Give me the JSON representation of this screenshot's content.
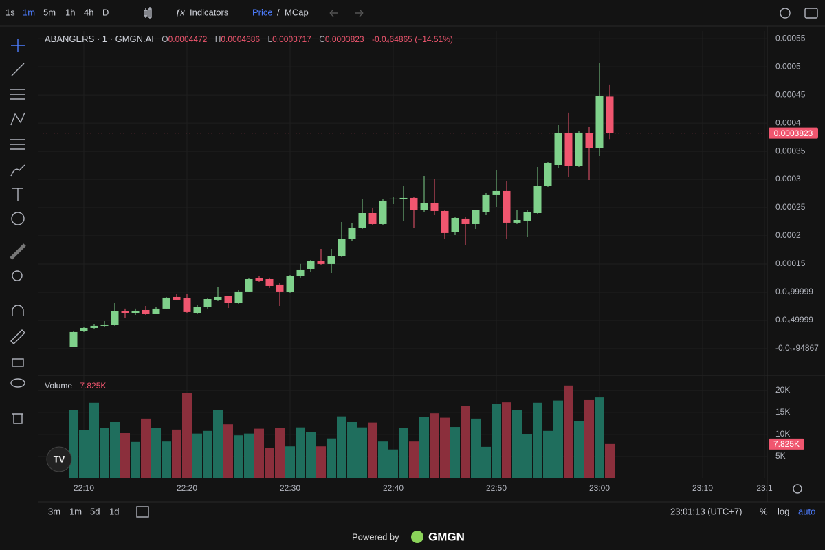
{
  "toolbar": {
    "intervals": [
      "1s",
      "1m",
      "5m",
      "1h",
      "4h",
      "D"
    ],
    "indicators": "Indicators",
    "price": "Price",
    "separator": "/",
    "mcap": "MCap"
  },
  "bottom": {
    "ranges": [
      "3m",
      "1m",
      "5d",
      "1d"
    ],
    "clock": "23:01:13 (UTC+7)",
    "options": [
      "%",
      "log",
      "auto"
    ]
  },
  "footer": {
    "powered": "Powered by",
    "brand": "GMGN"
  },
  "chart_data": {
    "type": "candlestick",
    "title": "ABANGERS · 1 · GMGN.AI",
    "ohlc_labels": [
      "O",
      "H",
      "L",
      "C"
    ],
    "change": "-0.0₄64865 (−14.51%)",
    "up_color": "#7fd18b",
    "down_color": "#f0566f",
    "grid": true,
    "categories": [
      null,
      "22:10",
      null,
      null,
      null,
      null,
      null,
      null,
      null,
      null,
      null,
      "22:20",
      null,
      null,
      null,
      null,
      null,
      null,
      null,
      null,
      null,
      "22:30",
      null,
      null,
      null,
      null,
      null,
      null,
      null,
      null,
      null,
      "22:40",
      null,
      null,
      null,
      null,
      null,
      null,
      null,
      null,
      null,
      "22:50",
      null,
      null,
      null,
      null,
      null,
      null,
      null,
      null,
      null,
      "23:00",
      null,
      null,
      null,
      null,
      null,
      null,
      null,
      null,
      null,
      "23:10",
      null,
      null,
      null,
      null,
      null,
      "23:1"
    ],
    "open": [
      2.4e-06,
      3.05e-05,
      3.66e-05,
      4.03e-05,
      4.15e-05,
      6.59e-05,
      6.34e-05,
      6.83e-05,
      6.22e-05,
      7.08e-05,
      9.15e-05,
      8.91e-05,
      6.34e-05,
      7.32e-05,
      8.66e-05,
      9.27e-05,
      8.05e-05,
      0.0001013,
      0.0001244,
      0.0001232,
      0.0001135,
      0.0001,
      0.0001281,
      0.0001415,
      0.0001549,
      0.0001501,
      0.0001635,
      0.000194,
      0.0002147,
      0.0002403,
      0.0002208,
      0.0002647,
      0.0002647,
      0.0002672,
      0.0002452,
      0.0002586,
      0.000244,
      0.0002062,
      0.0002306,
      0.0002208,
      0.0002416,
      0.0002733,
      0.0002794,
      0.0002233,
      0.0002269,
      0.0002403,
      0.0002891,
      0.0003257,
      0.0003819,
      0.0003233,
      0.0003819,
      0.000355,
      0.0004472,
      null,
      null,
      null,
      null,
      null,
      null,
      null,
      null,
      null,
      null,
      null,
      null,
      null,
      null,
      null
    ],
    "high": [
      3.17e-05,
      3.78e-05,
      4.39e-05,
      4.88e-05,
      8.05e-05,
      7.08e-05,
      7.08e-05,
      7.56e-05,
      7.32e-05,
      9.15e-05,
      9.64e-05,
      9.76e-05,
      7.69e-05,
      9.03e-05,
      0.0001086,
      9.39e-05,
      0.0001037,
      0.0001244,
      0.0001293,
      0.0001257,
      0.0001159,
      0.0001305,
      0.0001501,
      0.0001574,
      0.0001769,
      0.0001769,
      0.0002245,
      0.000222,
      0.0002647,
      0.0002489,
      0.0002647,
      0.0002684,
      0.0002879,
      0.0002684,
      0.0003062,
      0.0003001,
      0.0002464,
      0.000233,
      0.000233,
      0.0002464,
      0.0002757,
      0.000316,
      0.0002977,
      0.0002464,
      0.0002452,
      0.0003221,
      0.0003318,
      0.0003965,
      0.0004185,
      0.0003867,
      0.0003928,
      0.0005063,
      0.0004686,
      null,
      null,
      null,
      null,
      null,
      null,
      null,
      null,
      null,
      null,
      null,
      null,
      null,
      null,
      null
    ],
    "low": [
      2.4e-06,
      2.93e-05,
      3.54e-05,
      3.78e-05,
      4.03e-05,
      5.49e-05,
      5.98e-05,
      5.98e-05,
      6.1e-05,
      6.95e-05,
      8.54e-05,
      6.34e-05,
      6.1e-05,
      7.08e-05,
      8.42e-05,
      7.2e-05,
      7.93e-05,
      0.0001,
      0.0001183,
      0.0001074,
      7.56e-05,
      9.88e-05,
      0.0001257,
      0.0001366,
      0.0001476,
      0.0001342,
      0.0001623,
      0.0001915,
      0.0002123,
      0.0002184,
      0.0002184,
      0.0002562,
      0.0002257,
      0.0002135,
      0.0002428,
      0.0002367,
      0.000194,
      0.0002013,
      0.000183,
      0.0002123,
      0.0002367,
      0.0002513,
      0.000194,
      0.0002208,
      0.0001976,
      0.0002379,
      0.0002867,
      0.0003196,
      0.0003038,
      0.0003221,
      0.0002989,
      0.0003416,
      0.0003717,
      null,
      null,
      null,
      null,
      null,
      null,
      null,
      null,
      null,
      null,
      null,
      null,
      null,
      null,
      null
    ],
    "close": [
      2.93e-05,
      3.66e-05,
      4.03e-05,
      4.27e-05,
      6.59e-05,
      6.34e-05,
      6.71e-05,
      6.1e-05,
      7.08e-05,
      9.03e-05,
      8.66e-05,
      6.47e-05,
      7.32e-05,
      8.78e-05,
      9.15e-05,
      8.17e-05,
      0.0001013,
      0.0001232,
      0.0001208,
      0.000111,
      0.0001013,
      0.0001281,
      0.0001403,
      0.0001549,
      0.0001501,
      0.0001635,
      0.000194,
      0.0002147,
      0.0002403,
      0.0002208,
      0.0002623,
      0.000266,
      0.0002672,
      0.0002464,
      0.0002574,
      0.000244,
      0.000205,
      0.0002318,
      0.0002208,
      0.0002452,
      0.0002733,
      0.0002794,
      0.0002233,
      0.0002281,
      0.0002416,
      0.0002891,
      0.0003294,
      0.0003819,
      0.0003233,
      0.0003831,
      0.000355,
      0.0004477,
      0.0003823,
      null,
      null,
      null,
      null,
      null,
      null,
      null,
      null,
      null,
      null,
      null,
      null,
      null,
      null,
      null
    ],
    "ylim": [
      -4.64e-05,
      0.0005636
    ],
    "yticks": [
      {
        "value": -9.4867e-20,
        "label": "-0.0₁₉94867"
      },
      {
        "value": 4.9999e-05,
        "label": "0.0₄49999"
      },
      {
        "value": 9.9999e-05,
        "label": "0.0₄99999"
      },
      0.00015,
      0.0002,
      0.00025,
      0.0003,
      0.00035,
      0.0004,
      0.00045,
      0.0005,
      0.00055
    ],
    "volume": {
      "name": "Volume",
      "axis": "y2",
      "up_color": "#1f6e5d",
      "down_color": "#8b2f3c",
      "values": [
        15.5,
        11,
        17.2,
        11.5,
        12.8,
        10.3,
        8.3,
        13.6,
        11.5,
        8.4,
        11.1,
        19.5,
        10.2,
        10.8,
        15.5,
        12.3,
        9.8,
        10.2,
        11.3,
        7,
        11.4,
        7.3,
        11.6,
        10.5,
        7.3,
        9.1,
        14.1,
        12.8,
        11.6,
        12.7,
        8.4,
        6.6,
        11.4,
        8.4,
        13.9,
        14.8,
        13.8,
        11.7,
        16.4,
        13.6,
        7.2,
        17,
        17.3,
        15.5,
        10,
        17.2,
        10.8,
        17.7,
        21.1,
        13.1,
        17.8,
        18.4,
        7.825,
        null,
        null,
        null,
        null,
        null,
        null,
        null,
        null,
        null,
        null,
        null,
        null,
        null,
        null,
        null
      ],
      "value_labels": [
        null,
        null,
        null,
        null,
        null,
        null,
        null,
        null,
        null,
        null,
        null,
        null,
        null,
        null,
        null,
        null,
        null,
        null,
        null,
        null,
        null,
        null,
        null,
        null,
        null,
        null,
        null,
        null,
        null,
        null,
        null,
        null,
        null,
        null,
        null,
        null,
        null,
        null,
        null,
        null,
        null,
        null,
        null,
        null,
        null,
        null,
        null,
        null,
        null,
        null,
        null,
        null,
        "7.825K",
        null,
        null,
        null,
        null,
        null,
        null,
        null,
        null,
        null,
        null,
        null,
        null,
        null,
        null,
        null
      ]
    },
    "y2lim": [
      0,
      23.1
    ],
    "y2ticks": [
      {
        "value": 5,
        "label": "5K"
      },
      {
        "value": 10,
        "label": "10K"
      },
      {
        "value": 15,
        "label": "15K"
      },
      {
        "value": 20,
        "label": "20K"
      }
    ]
  }
}
